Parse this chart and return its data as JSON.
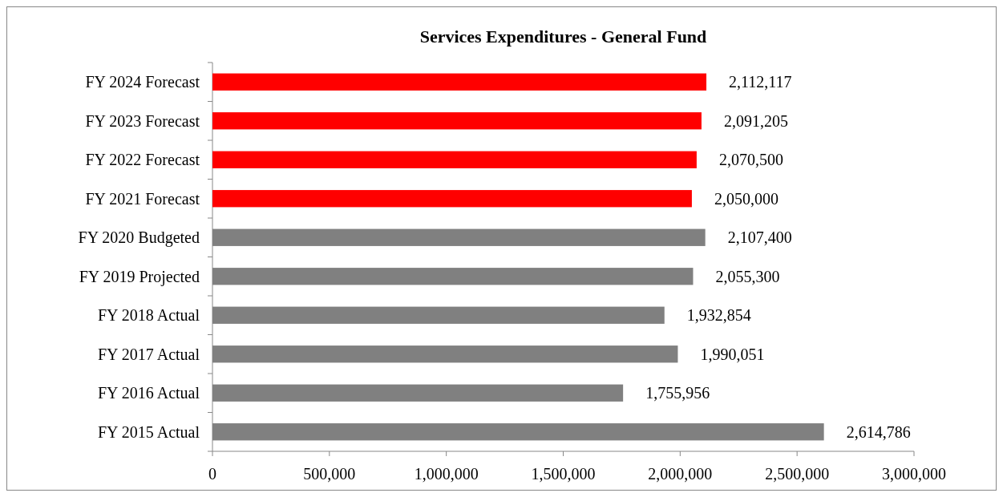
{
  "chart_data": {
    "type": "bar",
    "orientation": "horizontal",
    "title": "Services Expenditures - General Fund",
    "categories": [
      "FY 2024 Forecast",
      "FY 2023 Forecast",
      "FY 2022 Forecast",
      "FY 2021 Forecast",
      "FY 2020 Budgeted",
      "FY 2019 Projected",
      "FY 2018 Actual",
      "FY 2017 Actual",
      "FY 2016 Actual",
      "FY 2015 Actual"
    ],
    "values": [
      2112117,
      2091205,
      2070500,
      2050000,
      2107400,
      2055300,
      1932854,
      1990051,
      1755956,
      2614786
    ],
    "colors": [
      "#ff0000",
      "#ff0000",
      "#ff0000",
      "#ff0000",
      "#808080",
      "#808080",
      "#808080",
      "#808080",
      "#808080",
      "#808080"
    ],
    "xlim": [
      0,
      3000000
    ],
    "xticks": [
      {
        "value": 0,
        "label": "0"
      },
      {
        "value": 500000,
        "label": "500,000"
      },
      {
        "value": 1000000,
        "label": "1,000,000"
      },
      {
        "value": 1500000,
        "label": "1,500,000"
      },
      {
        "value": 2000000,
        "label": "2,000,000"
      },
      {
        "value": 2500000,
        "label": "2,500,000"
      },
      {
        "value": 3000000,
        "label": "3,000,000"
      }
    ],
    "value_labels": [
      "2,112,117",
      "2,091,205",
      "2,070,500",
      "2,050,000",
      "2,107,400",
      "2,055,300",
      "1,932,854",
      "1,990,051",
      "1,755,956",
      "2,614,786"
    ],
    "grid": false
  }
}
